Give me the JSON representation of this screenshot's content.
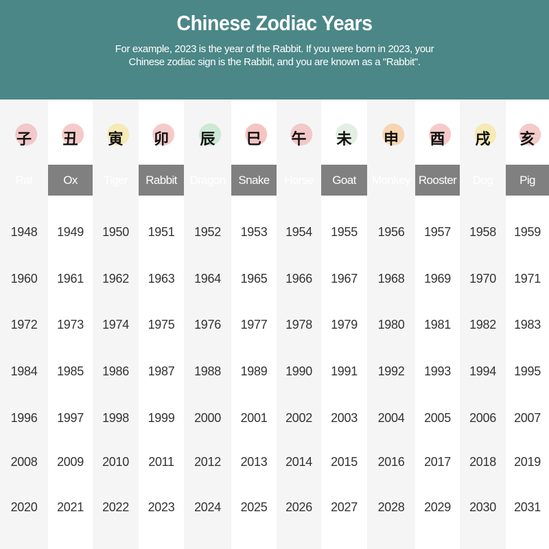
{
  "header": {
    "title": "Chinese Zodiac Years",
    "subtitle_line1": "For example, 2023 is the year of the Rabbit. If you were born in 2023, your",
    "subtitle_line2": "Chinese zodiac sign is the Rabbit, and you are known as a \"Rabbit\"."
  },
  "colors": {
    "header_bg": "#4b8786",
    "name_bar": "#808080",
    "shade": "#f5f5f5"
  },
  "signs": [
    {
      "name": "Rat",
      "icon": "rat-icon",
      "char": "子",
      "blob": "#f2b8b8",
      "years": [
        "1948",
        "1960",
        "1972",
        "1984",
        "1996",
        "2008",
        "2020"
      ]
    },
    {
      "name": "Ox",
      "icon": "ox-icon",
      "char": "丑",
      "blob": "#f2b8b8",
      "years": [
        "1949",
        "1961",
        "1973",
        "1985",
        "1997",
        "2009",
        "2021"
      ]
    },
    {
      "name": "Tiger",
      "icon": "tiger-icon",
      "char": "寅",
      "blob": "#f5e6a0",
      "years": [
        "1950",
        "1962",
        "1974",
        "1986",
        "1998",
        "2010",
        "2022"
      ]
    },
    {
      "name": "Rabbit",
      "icon": "rabbit-icon",
      "char": "卯",
      "blob": "#f2b8b8",
      "years": [
        "1951",
        "1963",
        "1975",
        "1987",
        "1999",
        "2011",
        "2023"
      ]
    },
    {
      "name": "Dragon",
      "icon": "dragon-icon",
      "char": "辰",
      "blob": "#bfe3c8",
      "years": [
        "1952",
        "1964",
        "1976",
        "1988",
        "2000",
        "2012",
        "2024"
      ]
    },
    {
      "name": "Snake",
      "icon": "snake-icon",
      "char": "巳",
      "blob": "#f2b0b0",
      "years": [
        "1953",
        "1965",
        "1977",
        "1989",
        "2001",
        "2013",
        "2025"
      ]
    },
    {
      "name": "Horse",
      "icon": "horse-icon",
      "char": "午",
      "blob": "#f2b8b8",
      "years": [
        "1954",
        "1966",
        "1978",
        "1990",
        "2002",
        "2014",
        "2026"
      ]
    },
    {
      "name": "Goat",
      "icon": "goat-icon",
      "char": "未",
      "blob": "#d8ead8",
      "years": [
        "1955",
        "1967",
        "1979",
        "1991",
        "2003",
        "2015",
        "2027"
      ]
    },
    {
      "name": "Monkey",
      "icon": "monkey-icon",
      "char": "申",
      "blob": "#f7c99a",
      "years": [
        "1956",
        "1968",
        "1980",
        "1992",
        "2004",
        "2016",
        "2028"
      ]
    },
    {
      "name": "Rooster",
      "icon": "rooster-icon",
      "char": "酉",
      "blob": "#f2b8b8",
      "years": [
        "1957",
        "1969",
        "1981",
        "1993",
        "2005",
        "2017",
        "2029"
      ]
    },
    {
      "name": "Dog",
      "icon": "dog-icon",
      "char": "戌",
      "blob": "#f5e6a0",
      "years": [
        "1958",
        "1970",
        "1982",
        "1994",
        "2006",
        "2018",
        "2030"
      ]
    },
    {
      "name": "Pig",
      "icon": "pig-icon",
      "char": "亥",
      "blob": "#f2b8b8",
      "years": [
        "1959",
        "1971",
        "1983",
        "1995",
        "2007",
        "2019",
        "2031"
      ]
    }
  ]
}
